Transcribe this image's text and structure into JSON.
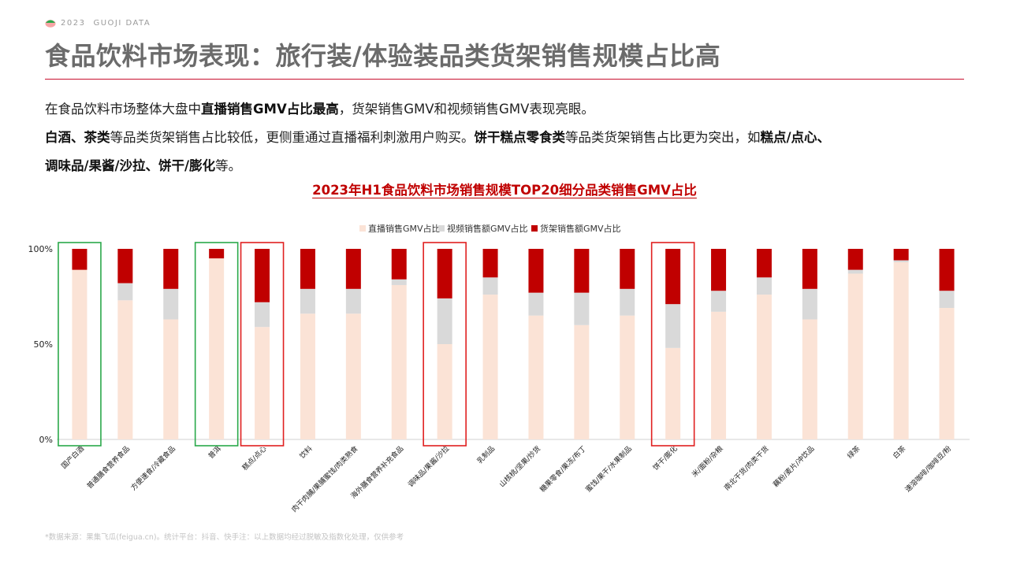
{
  "header": {
    "year": "2023",
    "brand": "GUOJI DATA",
    "title": "食品饮料市场表现：旅行装/体验装品类货架销售规模占比高"
  },
  "description": {
    "line1": [
      {
        "t": "在食品饮料市场整体大盘中",
        "b": false
      },
      {
        "t": "直播销售GMV占比最高",
        "b": true
      },
      {
        "t": "，货架销售GMV和视频销售GMV表现亮眼。",
        "b": false
      }
    ],
    "line2": [
      {
        "t": "白酒、茶类",
        "b": true
      },
      {
        "t": "等品类货架销售占比较低，更侧重通过直播福利刺激用户购买。",
        "b": false
      },
      {
        "t": "饼干糕点零食类",
        "b": true
      },
      {
        "t": "等品类货架销售占比更为突出，如",
        "b": false
      },
      {
        "t": "糕点/点心、",
        "b": true
      }
    ],
    "line3": [
      {
        "t": "调味品/果酱/沙拉、饼干/膨化",
        "b": true
      },
      {
        "t": "等。",
        "b": false
      }
    ]
  },
  "chart_data": {
    "type": "bar",
    "stacked": true,
    "title": "2023年H1食品饮料市场销售规模TOP20细分品类销售GMV占比",
    "yticks": [
      "0%",
      "50%",
      "100%"
    ],
    "ylim": [
      0,
      100
    ],
    "legend_position": "top-center",
    "categories": [
      "国产白酒",
      "普通膳食营养食品",
      "方便速食/冷藏食品",
      "普洱",
      "糕点/点心",
      "饮料",
      "肉干肉脯/果脯蜜饯/肉类熟食",
      "海外膳食营养补充食品",
      "调味品/果酱/沙拉",
      "乳制品",
      "山核桃/坚果/炒货",
      "糖果零食/果冻/布丁",
      "蜜饯/果干/水果制品",
      "饼干/膨化",
      "米/面粉/杂粮",
      "南北干货/肉类干货",
      "藕粉/麦片/冲饮品",
      "绿茶",
      "白茶",
      "速溶咖啡/咖啡豆/粉"
    ],
    "series": [
      {
        "name": "直播销售GMV占比",
        "color": "#fbe3d6",
        "values": [
          89,
          73,
          63,
          95,
          59,
          66,
          66,
          81,
          50,
          76,
          65,
          60,
          65,
          48,
          67,
          76,
          63,
          87,
          93,
          69
        ]
      },
      {
        "name": "视频销售额GMV占比",
        "color": "#d9d9d9",
        "values": [
          0,
          9,
          16,
          0,
          13,
          13,
          13,
          3,
          24,
          9,
          12,
          17,
          14,
          23,
          11,
          9,
          16,
          2,
          1,
          9
        ]
      },
      {
        "name": "货架销售额GMV占比",
        "color": "#c00000",
        "values": [
          11,
          18,
          21,
          5,
          28,
          21,
          21,
          16,
          26,
          15,
          23,
          23,
          21,
          29,
          22,
          15,
          21,
          11,
          6,
          22
        ]
      }
    ],
    "highlight_boxes": [
      {
        "index": 0,
        "color": "#2aa84a"
      },
      {
        "index": 3,
        "color": "#2aa84a"
      },
      {
        "index": 4,
        "color": "#e02020"
      },
      {
        "index": 8,
        "color": "#e02020"
      },
      {
        "index": 13,
        "color": "#e02020"
      }
    ]
  },
  "footnote": "*数据来源：果集飞瓜(feigua.cn)。统计平台：抖音、快手注：以上数据均经过脱敏及指数化处理，仅供参考"
}
